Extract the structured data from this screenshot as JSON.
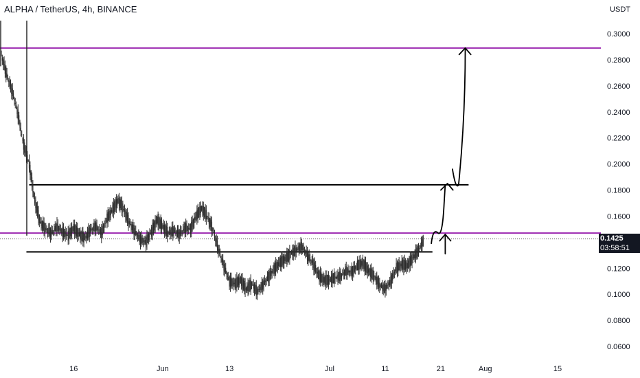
{
  "header": {
    "title": "ALPHA / TetherUS, 4h, BINANCE",
    "currency": "USDT"
  },
  "price_badge": {
    "price": "0.1425",
    "countdown": "03:58:51"
  },
  "colors": {
    "candle_up": "#2b2b2b",
    "candle_down": "#2b2b2b",
    "level_line": "#9c27b0",
    "drawing": "#000000",
    "badge_bg": "#131722"
  },
  "chart_data": {
    "type": "line",
    "title": "ALPHA / TetherUS, 4h, BINANCE",
    "xlabel": "",
    "ylabel": "USDT",
    "ylim": [
      0.05,
      0.31
    ],
    "y_ticks": [
      "0.3000",
      "0.2800",
      "0.2600",
      "0.2400",
      "0.2200",
      "0.2000",
      "0.1800",
      "0.1600",
      "0.1200",
      "0.1000",
      "0.0800",
      "0.0600"
    ],
    "x_ticks": [
      "16",
      "Jun",
      "13",
      "Jul",
      "11",
      "21",
      "Aug",
      "15"
    ],
    "x_tick_days": [
      13,
      29,
      41,
      59,
      69,
      79,
      87,
      100
    ],
    "series": [
      {
        "type": "price",
        "points": [
          [
            0,
            0.283
          ],
          [
            1,
            0.268
          ],
          [
            2,
            0.255
          ],
          [
            3,
            0.238
          ],
          [
            4,
            0.215
          ],
          [
            5,
            0.2
          ],
          [
            6,
            0.172
          ],
          [
            7,
            0.155
          ],
          [
            8,
            0.15
          ],
          [
            9,
            0.147
          ],
          [
            10,
            0.152
          ],
          [
            11,
            0.148
          ],
          [
            12,
            0.145
          ],
          [
            13,
            0.151
          ],
          [
            14,
            0.146
          ],
          [
            15,
            0.143
          ],
          [
            16,
            0.149
          ],
          [
            17,
            0.152
          ],
          [
            18,
            0.147
          ],
          [
            19,
            0.158
          ],
          [
            20,
            0.165
          ],
          [
            21,
            0.172
          ],
          [
            22,
            0.165
          ],
          [
            23,
            0.155
          ],
          [
            24,
            0.148
          ],
          [
            25,
            0.142
          ],
          [
            26,
            0.14
          ],
          [
            27,
            0.148
          ],
          [
            28,
            0.157
          ],
          [
            29,
            0.152
          ],
          [
            30,
            0.147
          ],
          [
            31,
            0.149
          ],
          [
            32,
            0.146
          ],
          [
            33,
            0.151
          ],
          [
            34,
            0.15
          ],
          [
            35,
            0.16
          ],
          [
            36,
            0.166
          ],
          [
            37,
            0.16
          ],
          [
            38,
            0.15
          ],
          [
            39,
            0.135
          ],
          [
            40,
            0.122
          ],
          [
            41,
            0.11
          ],
          [
            42,
            0.108
          ],
          [
            43,
            0.111
          ],
          [
            44,
            0.104
          ],
          [
            45,
            0.108
          ],
          [
            46,
            0.102
          ],
          [
            47,
            0.107
          ],
          [
            48,
            0.113
          ],
          [
            49,
            0.119
          ],
          [
            50,
            0.124
          ],
          [
            51,
            0.127
          ],
          [
            52,
            0.131
          ],
          [
            53,
            0.134
          ],
          [
            54,
            0.137
          ],
          [
            55,
            0.13
          ],
          [
            56,
            0.124
          ],
          [
            57,
            0.115
          ],
          [
            58,
            0.111
          ],
          [
            59,
            0.111
          ],
          [
            60,
            0.113
          ],
          [
            61,
            0.114
          ],
          [
            62,
            0.118
          ],
          [
            63,
            0.117
          ],
          [
            64,
            0.122
          ],
          [
            65,
            0.124
          ],
          [
            66,
            0.118
          ],
          [
            67,
            0.114
          ],
          [
            68,
            0.107
          ],
          [
            69,
            0.104
          ],
          [
            70,
            0.11
          ],
          [
            71,
            0.12
          ],
          [
            72,
            0.123
          ],
          [
            73,
            0.122
          ],
          [
            74,
            0.128
          ],
          [
            75,
            0.134
          ],
          [
            76,
            0.142
          ]
        ]
      }
    ],
    "levels": [
      {
        "name": "purple-upper",
        "value": 0.289,
        "color": "#9c27b0"
      },
      {
        "name": "purple-lower",
        "value": 0.147,
        "color": "#9c27b0"
      },
      {
        "name": "black-upper",
        "value": 0.184,
        "x_start": 5,
        "x_end": 84
      },
      {
        "name": "black-lower",
        "value": 0.1325,
        "x_start": 4.5,
        "x_end": 77.5
      }
    ],
    "current_price": 0.1425
  }
}
